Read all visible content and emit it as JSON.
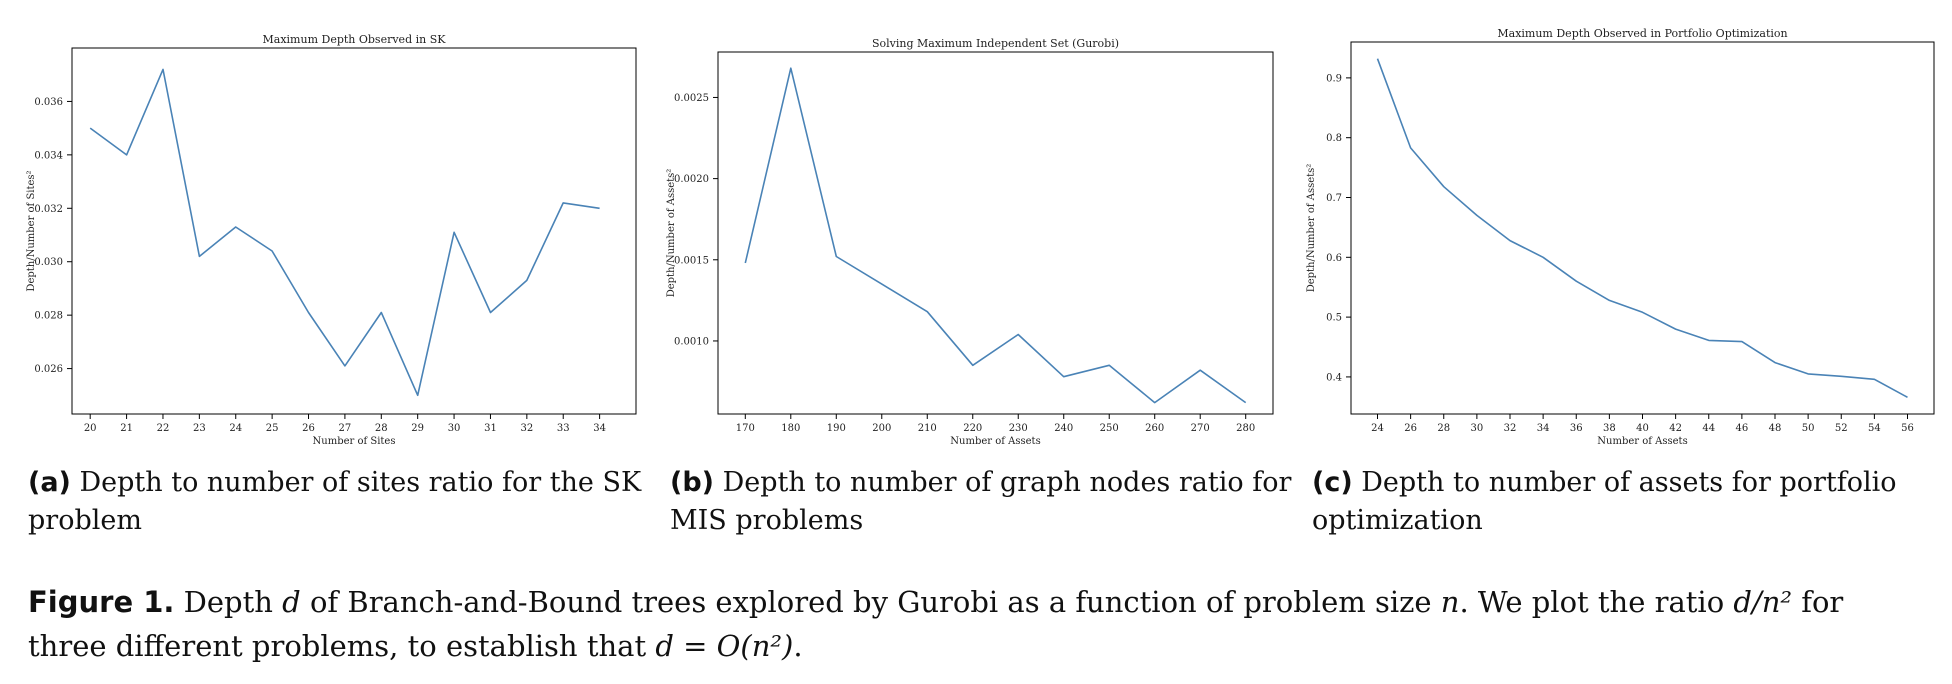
{
  "chart_data": [
    {
      "type": "line",
      "title": "Maximum Depth Observed in SK",
      "xlabel": "Number of Sites",
      "ylabel": "Depth/Number of Sites²",
      "x": [
        20,
        21,
        22,
        23,
        24,
        25,
        26,
        27,
        28,
        29,
        30,
        31,
        32,
        33,
        34
      ],
      "y": [
        0.035,
        0.034,
        0.0372,
        0.0302,
        0.0313,
        0.0304,
        0.0281,
        0.0261,
        0.0281,
        0.025,
        0.0311,
        0.0281,
        0.0293,
        0.0322,
        0.032
      ],
      "xticks": [
        "20",
        "21",
        "22",
        "23",
        "24",
        "25",
        "26",
        "27",
        "28",
        "29",
        "30",
        "31",
        "32",
        "33",
        "34"
      ],
      "yticks": [
        "0.026",
        "0.028",
        "0.030",
        "0.032",
        "0.034",
        "0.036"
      ],
      "ytick_values": [
        0.026,
        0.028,
        0.03,
        0.032,
        0.034,
        0.036
      ],
      "xlim": [
        19.5,
        35.0
      ],
      "ylim": [
        0.0243,
        0.038
      ],
      "grid": false,
      "color": "#4a83b6"
    },
    {
      "type": "line",
      "title": "Solving Maximum Independent Set (Gurobi)",
      "xlabel": "Number of Assets",
      "ylabel": "Depth/Number of Assets²",
      "x": [
        170,
        180,
        190,
        200,
        210,
        220,
        230,
        240,
        250,
        260,
        270,
        280
      ],
      "y": [
        0.00148,
        0.00268,
        0.00152,
        0.00135,
        0.00118,
        0.00085,
        0.00104,
        0.00078,
        0.00085,
        0.00062,
        0.00082,
        0.00062
      ],
      "xticks": [
        "170",
        "180",
        "190",
        "200",
        "210",
        "220",
        "230",
        "240",
        "250",
        "260",
        "270",
        "280"
      ],
      "yticks": [
        "0.0010",
        "0.0015",
        "0.0020",
        "0.0025"
      ],
      "ytick_values": [
        0.001,
        0.0015,
        0.002,
        0.0025
      ],
      "xlim": [
        164,
        286
      ],
      "ylim": [
        0.00055,
        0.00278
      ],
      "grid": false,
      "color": "#4a83b6"
    },
    {
      "type": "line",
      "title": "Maximum Depth Observed in Portfolio Optimization",
      "xlabel": "Number of Assets",
      "ylabel": "Depth/Number of Assets²",
      "x": [
        24,
        26,
        28,
        30,
        32,
        34,
        36,
        38,
        40,
        42,
        44,
        46,
        48,
        50,
        52,
        54,
        56
      ],
      "y": [
        0.932,
        0.783,
        0.718,
        0.67,
        0.628,
        0.6,
        0.56,
        0.528,
        0.508,
        0.48,
        0.461,
        0.459,
        0.424,
        0.405,
        0.401,
        0.396,
        0.366
      ],
      "xticks": [
        "24",
        "26",
        "28",
        "30",
        "32",
        "34",
        "36",
        "38",
        "40",
        "42",
        "44",
        "46",
        "48",
        "50",
        "52",
        "54",
        "56"
      ],
      "yticks": [
        "0.4",
        "0.5",
        "0.6",
        "0.7",
        "0.8",
        "0.9"
      ],
      "ytick_values": [
        0.4,
        0.5,
        0.6,
        0.7,
        0.8,
        0.9
      ],
      "xlim": [
        22.4,
        57.6
      ],
      "ylim": [
        0.338,
        0.96
      ],
      "grid": false,
      "color": "#4a83b6"
    }
  ],
  "subcaptions": [
    {
      "label": "(a)",
      "text": " Depth to number of sites ratio for the SK problem"
    },
    {
      "label": "(b)",
      "text": " Depth to number of graph nodes ratio for MIS problems"
    },
    {
      "label": "(c)",
      "text": " Depth to number of assets for portfolio optimization"
    }
  ],
  "caption": {
    "label": "Figure 1.",
    "part1": " Depth ",
    "d": "d",
    "part2": " of Branch-and-Bound trees explored by Gurobi as a function of problem size ",
    "n": "n",
    "part3": ". We plot the ratio ",
    "ratio": "d/n²",
    "part4": " for three different problems, to establish that ",
    "bigo": "d = O(n²)",
    "part5": "."
  }
}
